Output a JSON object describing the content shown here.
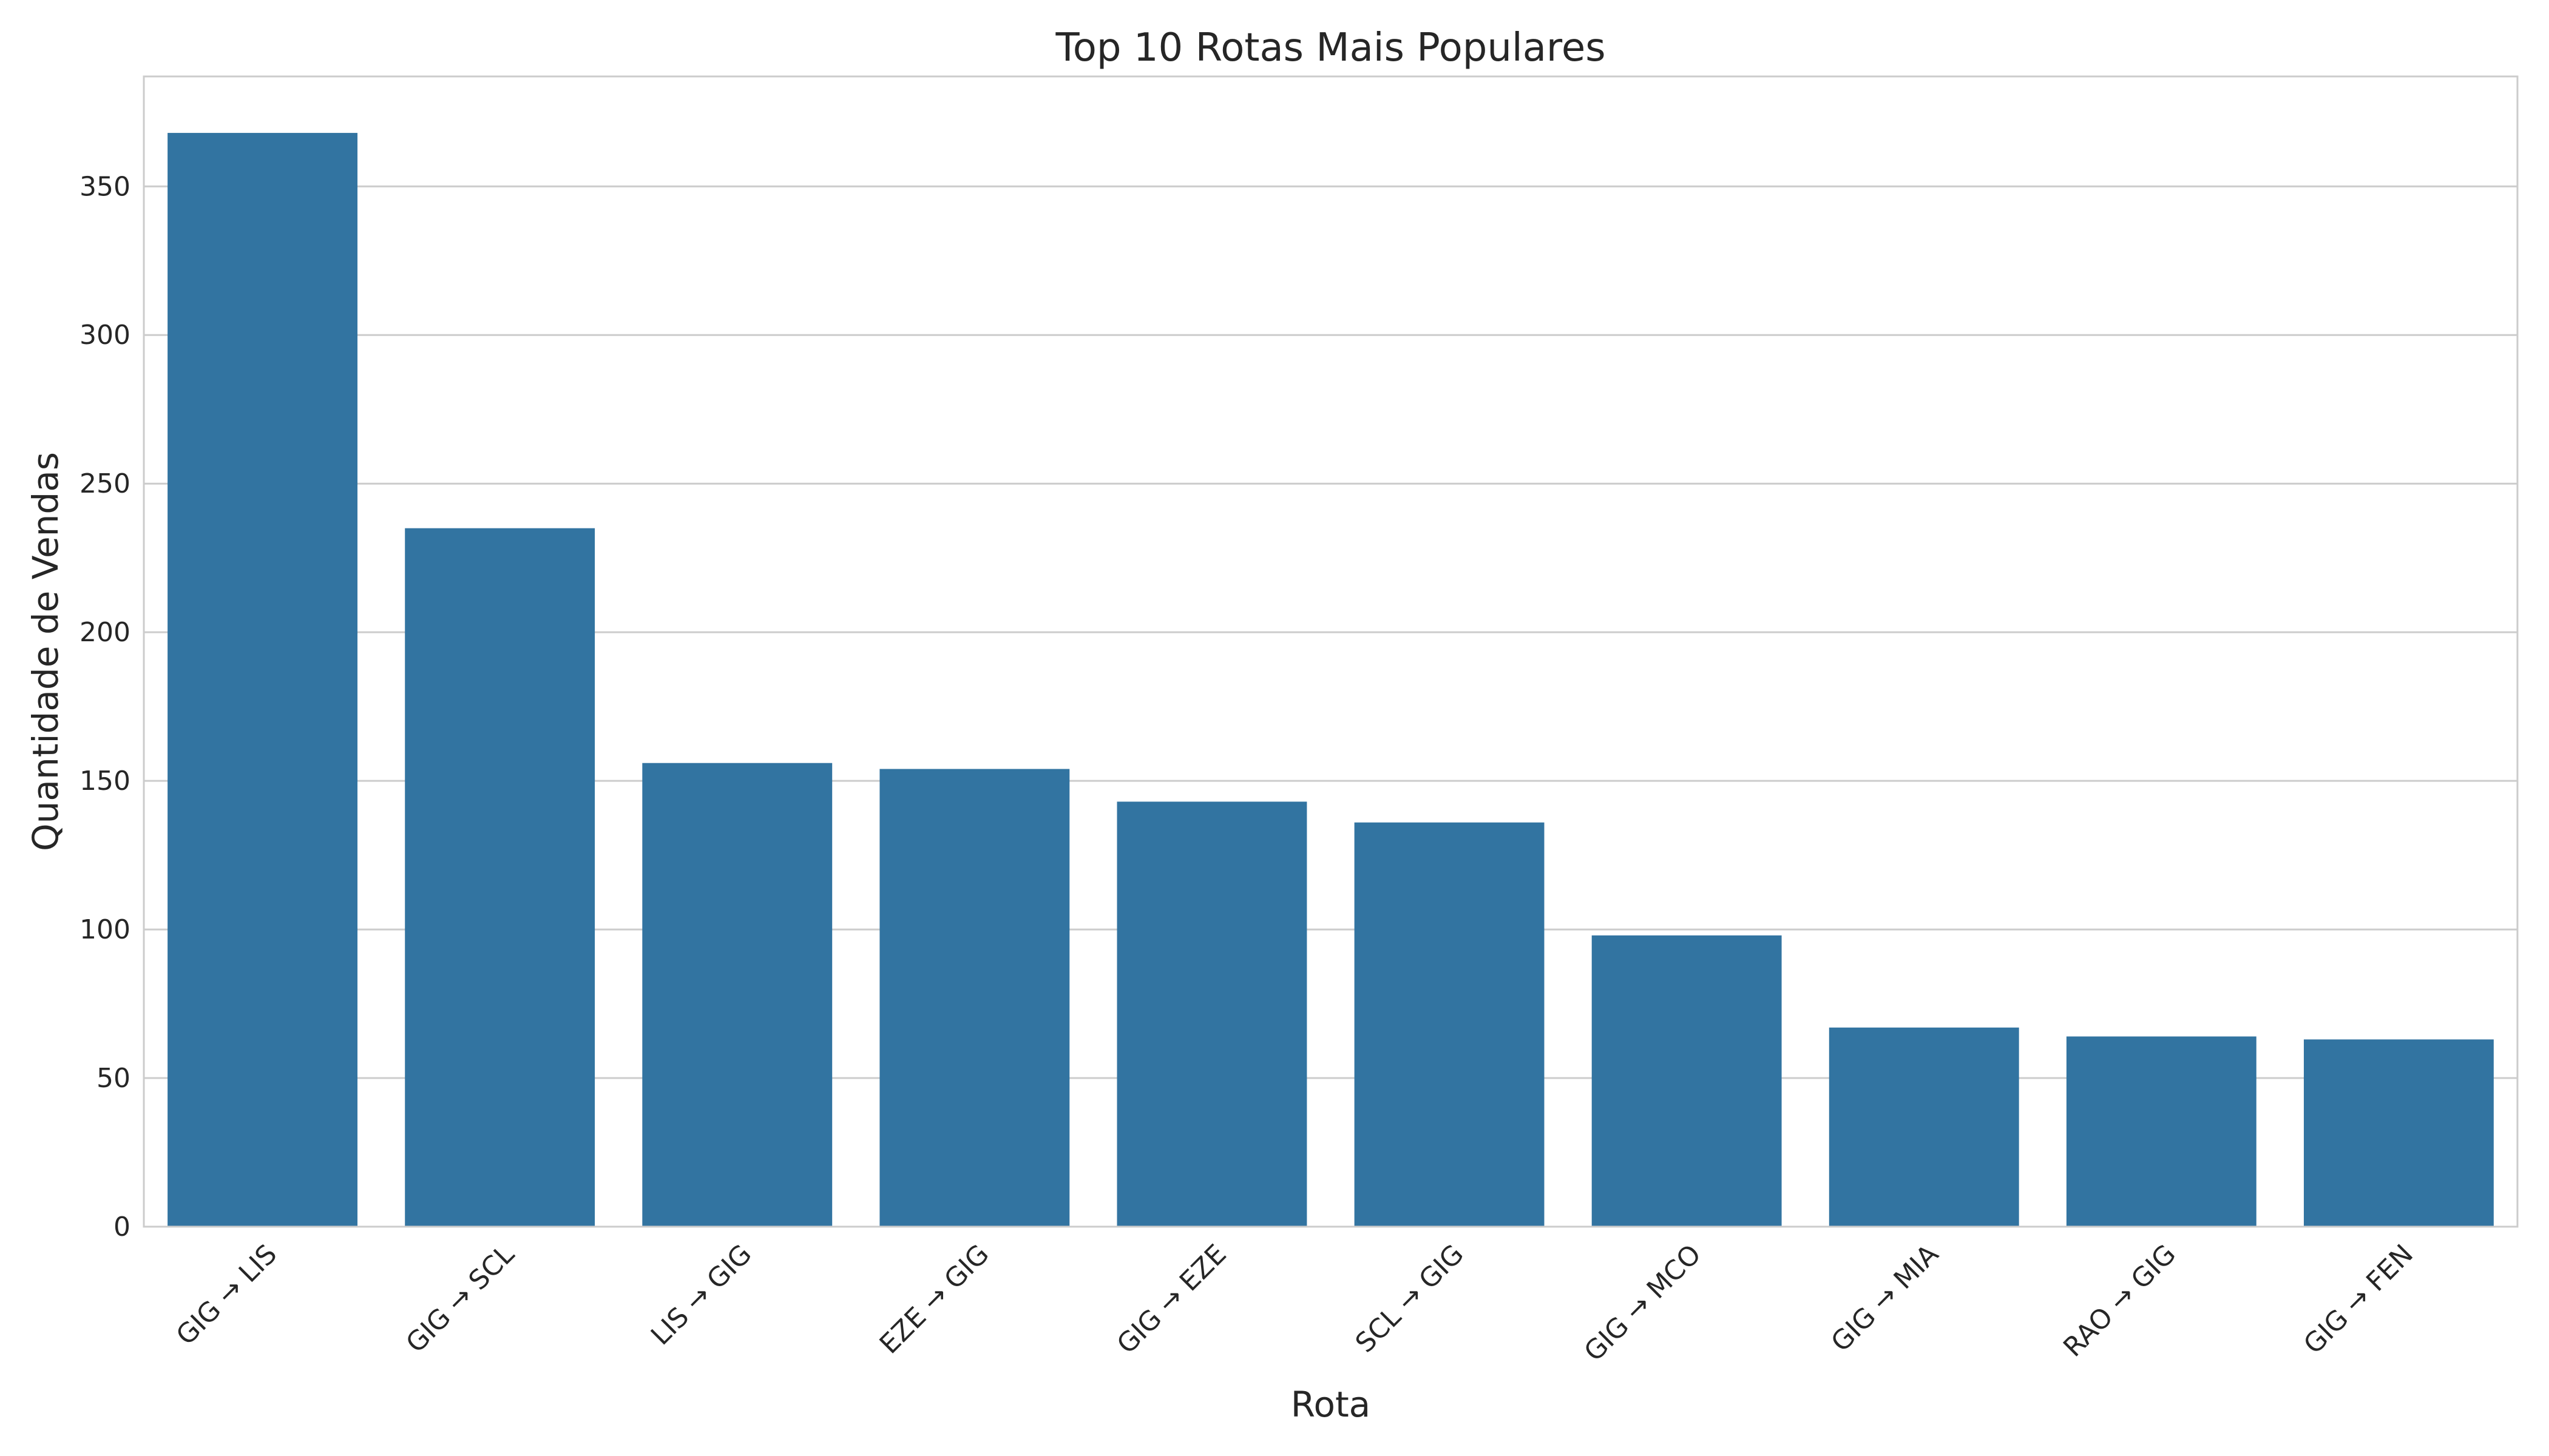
{
  "chart_data": {
    "type": "bar",
    "title": "Top 10 Rotas Mais Populares",
    "xlabel": "Rota",
    "ylabel": "Quantidade de Vendas",
    "categories": [
      "GIG → LIS",
      "GIG → SCL",
      "LIS → GIG",
      "EZE → GIG",
      "GIG → EZE",
      "SCL → GIG",
      "GIG → MCO",
      "GIG → MIA",
      "RAO → GIG",
      "GIG → FEN"
    ],
    "values": [
      368,
      235,
      156,
      154,
      143,
      136,
      98,
      67,
      64,
      63
    ],
    "ylim": [
      0,
      387
    ],
    "yticks": [
      0,
      50,
      100,
      150,
      200,
      250,
      300,
      350
    ],
    "grid": "y",
    "legend": "none",
    "colors": {
      "bar": "#3274a1",
      "grid": "#cccccc",
      "frame": "#cccccc",
      "text": "#262626"
    }
  }
}
